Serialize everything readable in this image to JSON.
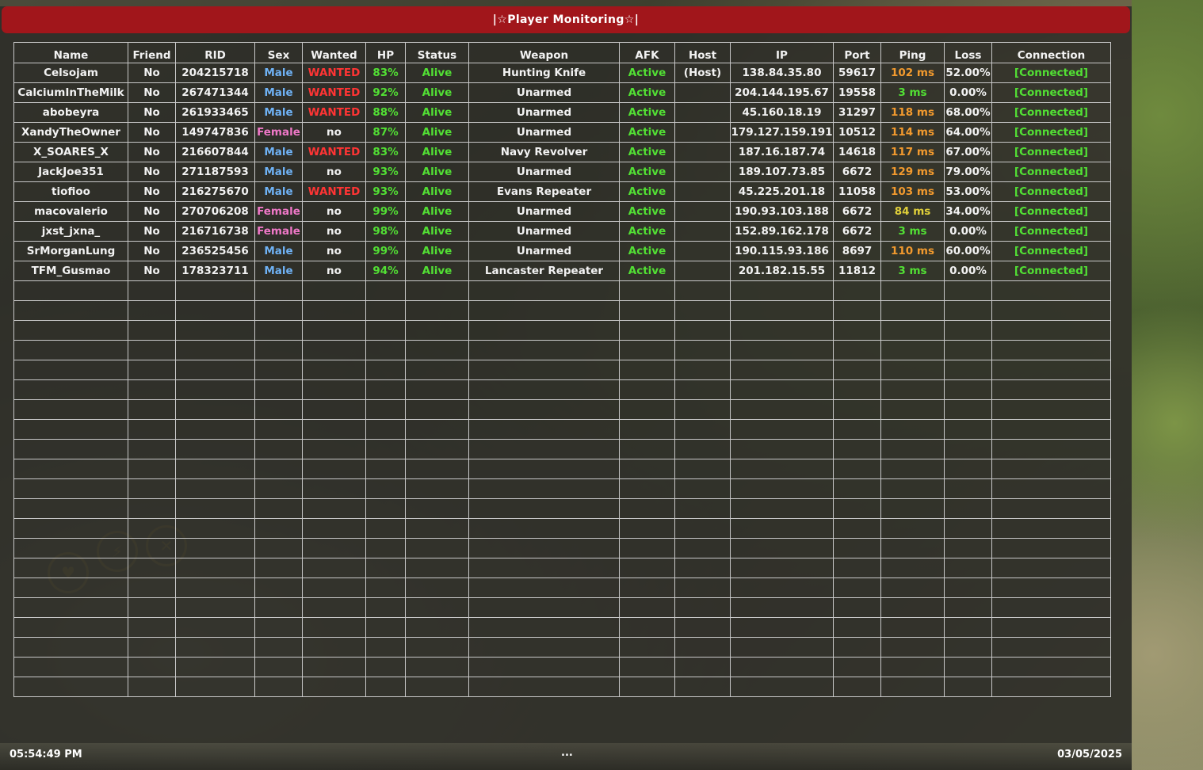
{
  "window": {
    "title": "|☆Player Monitoring☆|"
  },
  "columns": [
    "Name",
    "Friend",
    "RID",
    "Sex",
    "Wanted",
    "HP",
    "Status",
    "Weapon",
    "AFK",
    "Host",
    "IP",
    "Port",
    "Ping",
    "Loss",
    "Connection"
  ],
  "rows": [
    {
      "name": "Celsojam",
      "friend": "No",
      "rid": "204215718",
      "sex": "Male",
      "wanted": "WANTED",
      "hp": "83%",
      "status": "Alive",
      "weapon": "Hunting Knife",
      "afk": "Active",
      "host": "(Host)",
      "ip": "138.84.35.80",
      "port": "59617",
      "ping": "102 ms",
      "loss": "52.00%",
      "connection": "[Connected]"
    },
    {
      "name": "CalciumInTheMilk",
      "friend": "No",
      "rid": "267471344",
      "sex": "Male",
      "wanted": "WANTED",
      "hp": "92%",
      "status": "Alive",
      "weapon": "Unarmed",
      "afk": "Active",
      "host": "",
      "ip": "204.144.195.67",
      "port": "19558",
      "ping": "3 ms",
      "loss": "0.00%",
      "connection": "[Connected]"
    },
    {
      "name": "abobeyra",
      "friend": "No",
      "rid": "261933465",
      "sex": "Male",
      "wanted": "WANTED",
      "hp": "88%",
      "status": "Alive",
      "weapon": "Unarmed",
      "afk": "Active",
      "host": "",
      "ip": "45.160.18.19",
      "port": "31297",
      "ping": "118 ms",
      "loss": "68.00%",
      "connection": "[Connected]"
    },
    {
      "name": "XandyTheOwner",
      "friend": "No",
      "rid": "149747836",
      "sex": "Female",
      "wanted": "no",
      "hp": "87%",
      "status": "Alive",
      "weapon": "Unarmed",
      "afk": "Active",
      "host": "",
      "ip": "179.127.159.191",
      "port": "10512",
      "ping": "114 ms",
      "loss": "64.00%",
      "connection": "[Connected]"
    },
    {
      "name": "X_SOARES_X",
      "friend": "No",
      "rid": "216607844",
      "sex": "Male",
      "wanted": "WANTED",
      "hp": "83%",
      "status": "Alive",
      "weapon": "Navy Revolver",
      "afk": "Active",
      "host": "",
      "ip": "187.16.187.74",
      "port": "14618",
      "ping": "117 ms",
      "loss": "67.00%",
      "connection": "[Connected]"
    },
    {
      "name": "JackJoe351",
      "friend": "No",
      "rid": "271187593",
      "sex": "Male",
      "wanted": "no",
      "hp": "93%",
      "status": "Alive",
      "weapon": "Unarmed",
      "afk": "Active",
      "host": "",
      "ip": "189.107.73.85",
      "port": "6672",
      "ping": "129 ms",
      "loss": "79.00%",
      "connection": "[Connected]"
    },
    {
      "name": "tiofioo",
      "friend": "No",
      "rid": "216275670",
      "sex": "Male",
      "wanted": "WANTED",
      "hp": "93%",
      "status": "Alive",
      "weapon": "Evans Repeater",
      "afk": "Active",
      "host": "",
      "ip": "45.225.201.18",
      "port": "11058",
      "ping": "103 ms",
      "loss": "53.00%",
      "connection": "[Connected]"
    },
    {
      "name": "macovalerio",
      "friend": "No",
      "rid": "270706208",
      "sex": "Female",
      "wanted": "no",
      "hp": "99%",
      "status": "Alive",
      "weapon": "Unarmed",
      "afk": "Active",
      "host": "",
      "ip": "190.93.103.188",
      "port": "6672",
      "ping": "84 ms",
      "loss": "34.00%",
      "connection": "[Connected]"
    },
    {
      "name": "jxst_jxna_",
      "friend": "No",
      "rid": "216716738",
      "sex": "Female",
      "wanted": "no",
      "hp": "98%",
      "status": "Alive",
      "weapon": "Unarmed",
      "afk": "Active",
      "host": "",
      "ip": "152.89.162.178",
      "port": "6672",
      "ping": "3 ms",
      "loss": "0.00%",
      "connection": "[Connected]"
    },
    {
      "name": "SrMorganLung",
      "friend": "No",
      "rid": "236525456",
      "sex": "Male",
      "wanted": "no",
      "hp": "99%",
      "status": "Alive",
      "weapon": "Unarmed",
      "afk": "Active",
      "host": "",
      "ip": "190.115.93.186",
      "port": "8697",
      "ping": "110 ms",
      "loss": "60.00%",
      "connection": "[Connected]"
    },
    {
      "name": "TFM_Gusmao",
      "friend": "No",
      "rid": "178323711",
      "sex": "Male",
      "wanted": "no",
      "hp": "94%",
      "status": "Alive",
      "weapon": "Lancaster Repeater",
      "afk": "Active",
      "host": "",
      "ip": "201.182.15.55",
      "port": "11812",
      "ping": "3 ms",
      "loss": "0.00%",
      "connection": "[Connected]"
    }
  ],
  "empty_row_count": 21,
  "footer": {
    "time": "05:54:49 PM",
    "date": "03/05/2025",
    "center": "..."
  },
  "colors": {
    "title_bar": "#a1161b",
    "male": "#6fb2f5",
    "female": "#f078c8",
    "wanted": "#ff3434",
    "active_green": "#52e034",
    "ping_orange": "#f29a2e",
    "ping_yellow": "#e0d03a"
  },
  "hud_icons": [
    "heart-icon",
    "lightning-icon",
    "close-icon"
  ]
}
